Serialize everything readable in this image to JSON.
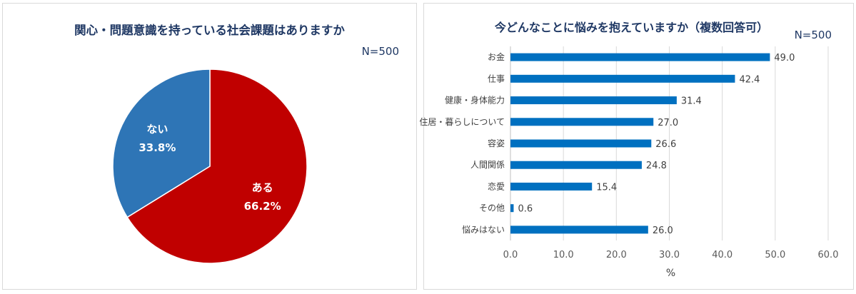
{
  "left": {
    "title": "関心・問題意識を持っている社会課題はありますか",
    "n_label": "N=500"
  },
  "right": {
    "title": "今どんなことに悩みを抱えていますか（複数回答可）",
    "n_label": "N=500"
  },
  "chart_data": [
    {
      "type": "pie",
      "title": "関心・問題意識を持っている社会課題はありますか",
      "note": "N=500",
      "slices": [
        {
          "label": "ある",
          "value": 66.2,
          "value_label": "66.2%",
          "color": "#c00000"
        },
        {
          "label": "ない",
          "value": 33.8,
          "value_label": "33.8%",
          "color": "#2e75b6"
        }
      ]
    },
    {
      "type": "bar",
      "orientation": "horizontal",
      "title": "今どんなことに悩みを抱えていますか（複数回答可）",
      "note": "N=500",
      "categories": [
        "お金",
        "仕事",
        "健康・身体能力",
        "住居・暮らしについて",
        "容姿",
        "人間関係",
        "恋愛",
        "その他",
        "悩みはない"
      ],
      "values": [
        49.0,
        42.4,
        31.4,
        27.0,
        26.6,
        24.8,
        15.4,
        0.6,
        26.0
      ],
      "value_labels": [
        "49.0",
        "42.4",
        "31.4",
        "27.0",
        "26.6",
        "24.8",
        "15.4",
        "0.6",
        "26.0"
      ],
      "xlabel": "%",
      "xlim": [
        0,
        60
      ],
      "xticks": [
        0,
        10,
        20,
        30,
        40,
        50,
        60
      ],
      "xtick_labels": [
        "0.0",
        "10.0",
        "20.0",
        "30.0",
        "40.0",
        "50.0",
        "60.0"
      ],
      "grid": true,
      "bar_color": "#0070c0"
    }
  ]
}
